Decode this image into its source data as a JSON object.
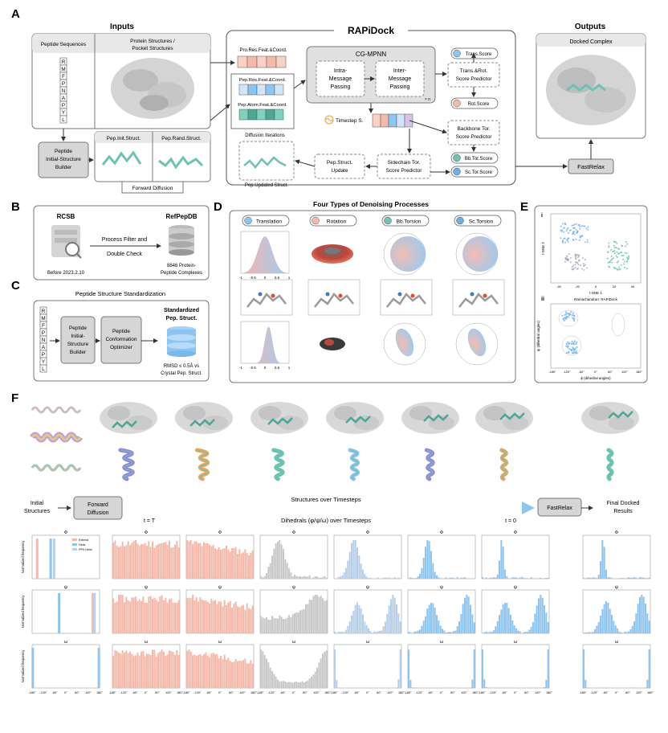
{
  "panel_labels": [
    "A",
    "B",
    "C",
    "D",
    "E",
    "F"
  ],
  "panelA": {
    "inputs_title": "Inputs",
    "outputs_title": "Outputs",
    "rapidock_title": "RAPiDock",
    "peptide_sequences": "Peptide Sequences",
    "protein_structures": "Protein Structures /",
    "pocket_structures": "Pocket Structures",
    "sequence_letters": [
      "R",
      "M",
      "F",
      "P",
      "N",
      "A",
      "P",
      "Y",
      "L"
    ],
    "builder": [
      "Peptide",
      "Initial-Structure",
      "Builder"
    ],
    "pep_init": "Pep.Init.Struct.",
    "pep_rand": "Pep.Rand.Struct.",
    "forward_diffusion": "Forward Diffusion",
    "pro_res_feat": "Pro.Res.Feat.&Coord.",
    "pep_res_feat": "Pep.Res.Feat.&Coord.",
    "pep_atom_feat": "Pep.Atom.Feat.&Coord.",
    "diffusion_iterations": "Diffusion Iterations",
    "pep_updated": "Pep.Updated Struct.",
    "cg_mpnn": "CG-MPNN",
    "intra": [
      "Intra-",
      "Message",
      "Passing"
    ],
    "inter": [
      "Inter-",
      "Message",
      "Passing"
    ],
    "layer_n": "× n",
    "timestep": "Timestep S.",
    "trans_rot_pred": [
      "Trans.&Rot.",
      "Score Predictor"
    ],
    "backbone_pred": [
      "Backbone Tor.",
      "Score Predictor"
    ],
    "sidechain_pred": [
      "Sidechain Tor.",
      "Score Predictor"
    ],
    "pep_struct_update": [
      "Pep.Struct.",
      "Update"
    ],
    "trans_score": "Trans.Score",
    "rot_score": "Rot.Score",
    "bb_tor_score": "Bb.Tor.Score",
    "sc_tor_score": "Sc.Tor.Score",
    "docked_complex": "Docked Complex",
    "fastrelax": "FastRelax"
  },
  "panelB": {
    "rcsb": "RCSB",
    "before": "Before 2023.2.10",
    "process": [
      "Process Filter and",
      "Double Check"
    ],
    "refpepdb": "RefPepDB",
    "complexes": [
      "8846 Protein-",
      "Peptide Complexes"
    ]
  },
  "panelC": {
    "title": "Peptide Structure Standardization",
    "builder": [
      "Peptide",
      "Initial-",
      "Structure",
      "Builder"
    ],
    "optimizer": [
      "Peptide",
      "Conformation",
      "Optimizer"
    ],
    "standardized": [
      "Standardized",
      "Pep. Struct."
    ],
    "rmsd": [
      "RMSD ≤ 0.5Å vs",
      "Crystal Pep. Struct."
    ]
  },
  "panelD": {
    "title": "Four Types of Denoising Processes",
    "types": [
      "Translation",
      "Rotation",
      "Bb.Torsion",
      "Sc.Torsion"
    ],
    "x_ticks": [
      "-1",
      "-0.5",
      "0",
      "0.5",
      "1"
    ]
  },
  "panelE": {
    "sub_i": "i",
    "sub_ii": "ii",
    "tsne_x": "t-SNE 1",
    "tsne_y": "t-SNE 2",
    "tsne_x_ticks": [
      "-40",
      "-20",
      "0",
      "20",
      "40"
    ],
    "rama_title": "Ramachandran: RAPiDock",
    "rama_x": "ϕ (dihedral angles)",
    "rama_y": "ψ (dihedral angles)",
    "rama_ticks": [
      "-180°",
      "-120°",
      "-60°",
      "0°",
      "60°",
      "120°",
      "180°"
    ]
  },
  "panelF": {
    "initial": [
      "Initial",
      "Structures"
    ],
    "forward_diffusion": [
      "Forward",
      "Diffusion"
    ],
    "over_timesteps": "Structures over Timesteps",
    "dihedrals_timesteps": "Dihedrals (φ/ψ/ω) over Timesteps",
    "t_start": "t = T",
    "t_end": "t = 0",
    "fastrelax": "FastRelax",
    "final": [
      "Final Docked",
      "Results"
    ],
    "row_titles": [
      "Φ",
      "ψ",
      "ω"
    ],
    "ylabel": "Normalized frequency",
    "legend": [
      "Extend",
      "Helix",
      "PPII Helix"
    ],
    "x_ticks": [
      "-180°",
      "-120°",
      "-60°",
      "0°",
      "60°",
      "120°",
      "180°"
    ]
  },
  "colors": {
    "pink": "#f4b9a8",
    "blue": "#8ec5f0",
    "gray": "#c8c8c8",
    "panel_gray": "#e8e8e8",
    "teal": "#6cc3b0"
  }
}
